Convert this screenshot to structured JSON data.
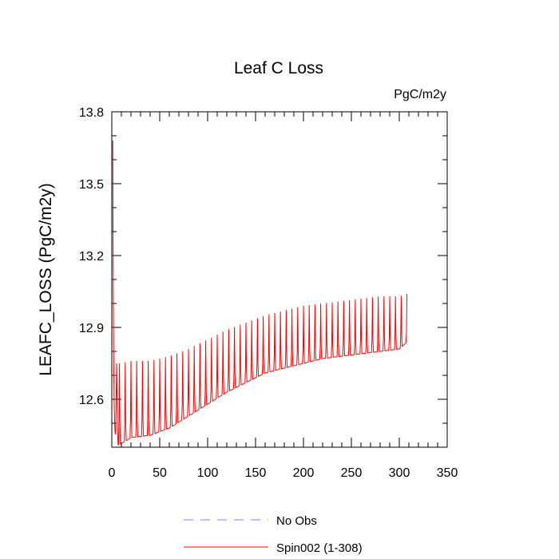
{
  "chart_data": {
    "type": "line",
    "title": "Leaf C Loss",
    "units": "PgC/m2y",
    "ylabel": "LEAFC_LOSS  (PgC/m2y)",
    "xlabel": "",
    "xlim": [
      0,
      350
    ],
    "ylim": [
      12.4,
      13.8
    ],
    "xticks": [
      0,
      50,
      100,
      150,
      200,
      250,
      300,
      350
    ],
    "yticks": [
      12.6,
      12.9,
      13.2,
      13.5,
      13.8
    ],
    "x_minor_step": 10,
    "y_minor_step": 0.1,
    "legend": {
      "placement": "bottom-center"
    },
    "series": [
      {
        "name": "No Obs",
        "color": "#8080ff",
        "style": "dashed",
        "values": []
      },
      {
        "name": "Spin002 (1-308)",
        "color": "#ff0000",
        "style": "solid",
        "x_start": 1,
        "x_end": 308,
        "initial_peak": 13.68,
        "cycle_years": 6,
        "envelope": [
          {
            "x": 1,
            "min": 12.56,
            "max": 13.68
          },
          {
            "x": 8,
            "min": 12.41,
            "max": 12.75
          },
          {
            "x": 20,
            "min": 12.44,
            "max": 12.76
          },
          {
            "x": 40,
            "min": 12.45,
            "max": 12.76
          },
          {
            "x": 60,
            "min": 12.48,
            "max": 12.78
          },
          {
            "x": 80,
            "min": 12.53,
            "max": 12.81
          },
          {
            "x": 100,
            "min": 12.58,
            "max": 12.85
          },
          {
            "x": 120,
            "min": 12.63,
            "max": 12.89
          },
          {
            "x": 140,
            "min": 12.67,
            "max": 12.92
          },
          {
            "x": 160,
            "min": 12.71,
            "max": 12.95
          },
          {
            "x": 180,
            "min": 12.73,
            "max": 12.97
          },
          {
            "x": 200,
            "min": 12.75,
            "max": 12.99
          },
          {
            "x": 220,
            "min": 12.77,
            "max": 13.0
          },
          {
            "x": 240,
            "min": 12.78,
            "max": 13.01
          },
          {
            "x": 260,
            "min": 12.79,
            "max": 13.02
          },
          {
            "x": 280,
            "min": 12.8,
            "max": 13.03
          },
          {
            "x": 300,
            "min": 12.81,
            "max": 13.03
          },
          {
            "x": 308,
            "min": 12.84,
            "max": 13.04
          }
        ]
      }
    ]
  }
}
